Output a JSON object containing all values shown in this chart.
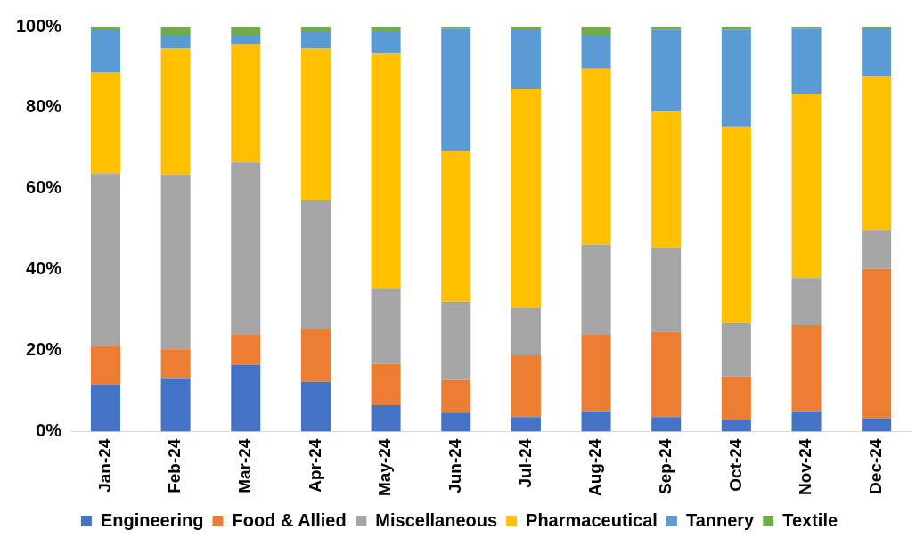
{
  "chart_data": {
    "type": "bar",
    "stacked": true,
    "categories": [
      "Jan-24",
      "Feb-24",
      "Mar-24",
      "Apr-24",
      "May-24",
      "Jun-24",
      "Jul-24",
      "Aug-24",
      "Sep-24",
      "Oct-24",
      "Nov-24",
      "Dec-24"
    ],
    "series": [
      {
        "name": "Engineering",
        "color": "#4472c4",
        "values": [
          11.6,
          13.2,
          16.5,
          12.3,
          6.5,
          4.7,
          3.6,
          5.1,
          3.6,
          2.9,
          5.1,
          3.3
        ]
      },
      {
        "name": "Food & Allied",
        "color": "#ed7d31",
        "values": [
          9.6,
          7.1,
          7.4,
          13.1,
          10.2,
          8.0,
          15.2,
          18.8,
          21.0,
          10.7,
          21.2,
          36.9
        ]
      },
      {
        "name": "Miscellaneous",
        "color": "#a5a5a5",
        "values": [
          42.6,
          43.1,
          42.6,
          31.7,
          18.6,
          19.4,
          11.8,
          22.3,
          20.9,
          13.2,
          11.6,
          9.6
        ]
      },
      {
        "name": "Pharmaceutical",
        "color": "#ffc000",
        "values": [
          25.0,
          31.2,
          29.3,
          37.5,
          58.0,
          37.3,
          54.0,
          43.5,
          33.5,
          48.4,
          45.4,
          38.1
        ]
      },
      {
        "name": "Tannery",
        "color": "#5b9bd5",
        "values": [
          10.3,
          3.4,
          2.0,
          4.1,
          5.4,
          30.2,
          14.5,
          8.3,
          20.3,
          24.1,
          16.3,
          11.9
        ]
      },
      {
        "name": "Textile",
        "color": "#70ad47",
        "values": [
          0.9,
          2.0,
          2.2,
          1.3,
          1.3,
          0.4,
          0.9,
          2.0,
          0.7,
          0.7,
          0.4,
          0.2
        ]
      }
    ],
    "ylim": [
      0,
      100
    ],
    "yticks": [
      {
        "value": 0,
        "label": "0%"
      },
      {
        "value": 20,
        "label": "20%"
      },
      {
        "value": 40,
        "label": "40%"
      },
      {
        "value": 60,
        "label": "60%"
      },
      {
        "value": 80,
        "label": "80%"
      },
      {
        "value": 100,
        "label": "100%"
      }
    ],
    "grid": false,
    "legend": "bottom"
  }
}
